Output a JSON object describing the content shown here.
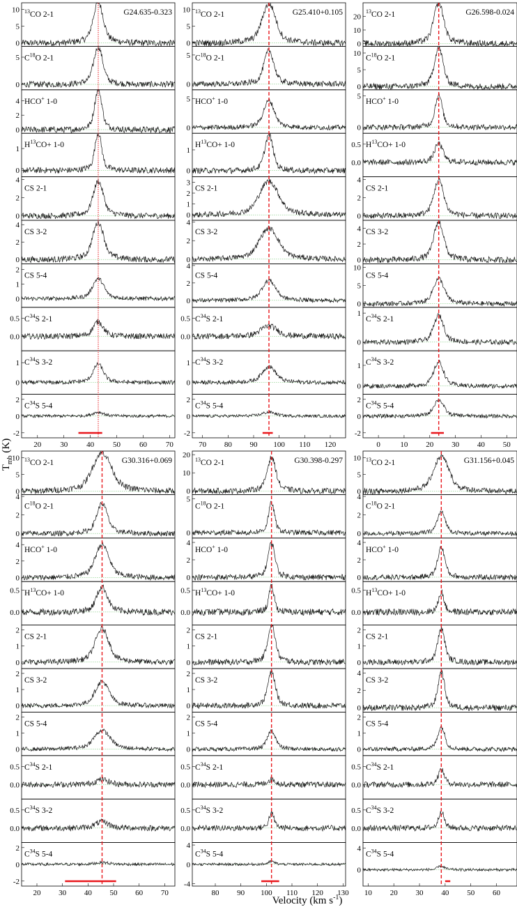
{
  "chart_data": {
    "type": "line",
    "ylabel": "T_mb (K)",
    "ylabel_parts": {
      "main": "T",
      "sub": "mb",
      "rest": " (K)"
    },
    "xlabel": "Velocity (km s-1)",
    "xlabel_parts": {
      "main": "Velocity (km s",
      "sup": "-1",
      "rest": ")"
    },
    "colors": {
      "spectrum": "#111111",
      "baseline": "#5fbf5f",
      "marker": "#e8161b"
    },
    "line_labels": [
      {
        "pre": "",
        "sup": "13",
        "post": "CO 2-1"
      },
      {
        "pre": "C",
        "sup": "18",
        "post": "O 2-1"
      },
      {
        "pre": "HCO",
        "sup": "+",
        "post": " 1-0"
      },
      {
        "pre": "H",
        "sup": "13",
        "post": "CO+ 1-0"
      },
      {
        "pre": "CS 2-1",
        "sup": "",
        "post": ""
      },
      {
        "pre": "CS 3-2",
        "sup": "",
        "post": ""
      },
      {
        "pre": "CS 5-4",
        "sup": "",
        "post": ""
      },
      {
        "pre": "C",
        "sup": "34",
        "post": "S 2-1"
      },
      {
        "pre": "C",
        "sup": "34",
        "post": "S 3-2"
      },
      {
        "pre": "C",
        "sup": "34",
        "post": "S 5-4"
      }
    ],
    "sources": [
      {
        "name": "G24.635-0.323",
        "xlim": [
          14,
          72
        ],
        "xticks": [
          20,
          30,
          40,
          50,
          60,
          70
        ],
        "vlsr": 43,
        "marker_style": "dotted",
        "range_bar": [
          35.5,
          44.5
        ],
        "panels": [
          {
            "yticks": [
              0,
              5,
              10
            ],
            "ylim": [
              -1,
              12
            ],
            "peak": 10.5,
            "width": 1.8
          },
          {
            "yticks": [
              0,
              5
            ],
            "ylim": [
              -1,
              7
            ],
            "peak": 6.0,
            "width": 1.6
          },
          {
            "yticks": [
              0,
              2,
              4
            ],
            "ylim": [
              -0.5,
              5.5
            ],
            "peak": 4.8,
            "width": 1.3
          },
          {
            "yticks": [
              0,
              1
            ],
            "ylim": [
              -0.3,
              1.7
            ],
            "peak": 1.5,
            "width": 1.2
          },
          {
            "yticks": [
              0,
              2,
              4
            ],
            "ylim": [
              -0.5,
              4.3
            ],
            "peak": 3.3,
            "width": 1.8
          },
          {
            "yticks": [
              0,
              2,
              4
            ],
            "ylim": [
              -0.5,
              4.5
            ],
            "peak": 3.7,
            "width": 2.0
          },
          {
            "yticks": [
              0,
              1,
              2
            ],
            "ylim": [
              -0.6,
              2.4
            ],
            "peak": 1.2,
            "width": 2.0
          },
          {
            "yticks": [
              0.0,
              0.5
            ],
            "ylim": [
              -0.4,
              0.8
            ],
            "peak": 0.35,
            "width": 1.8
          },
          {
            "yticks": [
              0,
              1
            ],
            "ylim": [
              -0.6,
              1.6
            ],
            "peak": 0.8,
            "width": 1.8
          },
          {
            "yticks": [
              -2,
              0,
              2
            ],
            "ylim": [
              -2.6,
              2.6
            ],
            "peak": 0.4,
            "width": 2.0
          }
        ]
      },
      {
        "name": "G25.410+0.105",
        "xlim": [
          66,
          126
        ],
        "xticks": [
          70,
          80,
          90,
          100,
          110,
          120
        ],
        "vlsr": 96,
        "marker_style": "dashed",
        "range_bar": [
          93.5,
          97.5
        ],
        "panels": [
          {
            "yticks": [
              0,
              5,
              10
            ],
            "ylim": [
              -1,
              12
            ],
            "peak": 10.2,
            "width": 2.5
          },
          {
            "yticks": [
              0,
              5
            ],
            "ylim": [
              -1,
              6.5
            ],
            "peak": 5.0,
            "width": 1.8
          },
          {
            "yticks": [
              0,
              5
            ],
            "ylim": [
              -1,
              6.5
            ],
            "peak": 4.0,
            "width": 2.0
          },
          {
            "yticks": [
              0,
              1
            ],
            "ylim": [
              -0.3,
              1.8
            ],
            "peak": 1.5,
            "width": 1.5
          },
          {
            "yticks": [
              0,
              1,
              2,
              3
            ],
            "ylim": [
              -0.5,
              3.5
            ],
            "peak": 2.7,
            "width": 3.5
          },
          {
            "yticks": [
              0,
              2,
              4
            ],
            "ylim": [
              -0.5,
              4.2
            ],
            "peak": 2.9,
            "width": 3.5
          },
          {
            "yticks": [
              0,
              2,
              4
            ],
            "ylim": [
              -0.8,
              4.2
            ],
            "peak": 2.0,
            "width": 2.5
          },
          {
            "yticks": [
              0.0,
              0.5
            ],
            "ylim": [
              -0.4,
              0.8
            ],
            "peak": 0.25,
            "width": 3.0
          },
          {
            "yticks": [
              0,
              1
            ],
            "ylim": [
              -0.6,
              1.6
            ],
            "peak": 0.7,
            "width": 2.5
          },
          {
            "yticks": [
              -2,
              0,
              2
            ],
            "ylim": [
              -2.6,
              2.6
            ],
            "peak": 0.4,
            "width": 2.5
          }
        ]
      },
      {
        "name": "G26.598-0.024",
        "xlim": [
          -6,
          54
        ],
        "xticks": [
          0,
          10,
          20,
          30,
          40,
          50
        ],
        "vlsr": 23.5,
        "marker_style": "dashed",
        "range_bar": [
          20.5,
          25.5
        ],
        "panels": [
          {
            "yticks": [
              0,
              10,
              20
            ],
            "ylim": [
              -2,
              30
            ],
            "peak": 26,
            "width": 1.8
          },
          {
            "yticks": [
              0,
              5,
              10
            ],
            "ylim": [
              -1,
              12
            ],
            "peak": 10,
            "width": 1.6
          },
          {
            "yticks": [
              0,
              5
            ],
            "ylim": [
              -1,
              6
            ],
            "peak": 4.5,
            "width": 1.3
          },
          {
            "yticks": [
              0.0,
              0.5
            ],
            "ylim": [
              -0.4,
              0.8
            ],
            "peak": 0.45,
            "width": 1.5
          },
          {
            "yticks": [
              0,
              2,
              4
            ],
            "ylim": [
              -0.5,
              4.3
            ],
            "peak": 3.4,
            "width": 1.8
          },
          {
            "yticks": [
              0,
              2,
              4
            ],
            "ylim": [
              -0.5,
              5
            ],
            "peak": 4.2,
            "width": 1.8
          },
          {
            "yticks": [
              0,
              5,
              10
            ],
            "ylim": [
              -1,
              11
            ],
            "peak": 6.0,
            "width": 2.0
          },
          {
            "yticks": [
              0,
              1
            ],
            "ylim": [
              -0.3,
              1.2
            ],
            "peak": 0.8,
            "width": 1.8
          },
          {
            "yticks": [
              0,
              1
            ],
            "ylim": [
              -0.4,
              1.7
            ],
            "peak": 1.0,
            "width": 1.8
          },
          {
            "yticks": [
              -2,
              0,
              2
            ],
            "ylim": [
              -2.6,
              2.6
            ],
            "peak": 1.7,
            "width": 1.8
          }
        ]
      },
      {
        "name": "G30.316+0.069",
        "xlim": [
          14,
          74
        ],
        "xticks": [
          20,
          30,
          40,
          50,
          60,
          70
        ],
        "vlsr": 45.5,
        "marker_style": "dashed",
        "range_bar": [
          31,
          51
        ],
        "panels": [
          {
            "yticks": [
              0,
              5,
              10
            ],
            "ylim": [
              -1,
              12
            ],
            "peak": 10,
            "width": 3.5
          },
          {
            "yticks": [
              0,
              2,
              4
            ],
            "ylim": [
              -0.5,
              4.2
            ],
            "peak": 2.8,
            "width": 2.0
          },
          {
            "yticks": [
              0,
              2,
              4
            ],
            "ylim": [
              -0.5,
              4.8
            ],
            "peak": 3.5,
            "width": 2.5
          },
          {
            "yticks": [
              0.0,
              0.5
            ],
            "ylim": [
              -0.3,
              0.7
            ],
            "peak": 0.5,
            "width": 2.0
          },
          {
            "yticks": [
              0,
              1,
              2
            ],
            "ylim": [
              -0.4,
              2.3
            ],
            "peak": 1.8,
            "width": 2.5
          },
          {
            "yticks": [
              0,
              1,
              2
            ],
            "ylim": [
              -0.4,
              2.3
            ],
            "peak": 1.3,
            "width": 2.5
          },
          {
            "yticks": [
              0,
              1,
              2
            ],
            "ylim": [
              -0.4,
              2.3
            ],
            "peak": 1.0,
            "width": 3.0
          },
          {
            "yticks": [
              0.0,
              0.5
            ],
            "ylim": [
              -0.4,
              0.8
            ],
            "peak": 0.12,
            "width": 2.5
          },
          {
            "yticks": [
              0.0,
              0.5
            ],
            "ylim": [
              -0.4,
              0.8
            ],
            "peak": 0.15,
            "width": 2.5
          },
          {
            "yticks": [
              -2,
              0,
              2
            ],
            "ylim": [
              -2.6,
              2.6
            ],
            "peak": 0.2,
            "width": 2.5
          }
        ]
      },
      {
        "name": "G30.398-0.297",
        "xlim": [
          71,
          131
        ],
        "xticks": [
          80,
          90,
          100,
          110,
          120,
          130
        ],
        "vlsr": 102,
        "marker_style": "dashed",
        "range_bar": [
          98,
          105
        ],
        "panels": [
          {
            "yticks": [
              0,
              10,
              20
            ],
            "ylim": [
              -2,
              22
            ],
            "peak": 16,
            "width": 1.6
          },
          {
            "yticks": [
              0,
              5
            ],
            "ylim": [
              -0.8,
              5.6
            ],
            "peak": 3.8,
            "width": 1.1
          },
          {
            "yticks": [
              0,
              2,
              4
            ],
            "ylim": [
              -0.5,
              4.5
            ],
            "peak": 3.4,
            "width": 1.3
          },
          {
            "yticks": [
              0.0,
              0.5
            ],
            "ylim": [
              -0.3,
              0.7
            ],
            "peak": 0.5,
            "width": 1.0
          },
          {
            "yticks": [
              0,
              1,
              2
            ],
            "ylim": [
              -0.4,
              2.3
            ],
            "peak": 2.0,
            "width": 1.4
          },
          {
            "yticks": [
              0,
              1,
              2
            ],
            "ylim": [
              -0.4,
              2.3
            ],
            "peak": 1.8,
            "width": 1.4
          },
          {
            "yticks": [
              0,
              1,
              2
            ],
            "ylim": [
              -0.4,
              2.3
            ],
            "peak": 1.0,
            "width": 1.5
          },
          {
            "yticks": [
              0.0,
              0.5
            ],
            "ylim": [
              -0.4,
              0.8
            ],
            "peak": 0.12,
            "width": 1.5
          },
          {
            "yticks": [
              0.0,
              0.5
            ],
            "ylim": [
              -0.4,
              0.8
            ],
            "peak": 0.35,
            "width": 1.0
          },
          {
            "yticks": [
              -4,
              0,
              4
            ],
            "ylim": [
              -4.5,
              4.5
            ],
            "peak": 0.5,
            "width": 1.2
          }
        ]
      },
      {
        "name": "G31.156+0.045",
        "xlim": [
          8,
          68
        ],
        "xticks": [
          10,
          20,
          30,
          40,
          50,
          60
        ],
        "vlsr": 38.5,
        "marker_style": "dashed",
        "range_bar": [
          40,
          42
        ],
        "panels": [
          {
            "yticks": [
              0,
              5,
              10
            ],
            "ylim": [
              -1,
              12
            ],
            "peak": 9,
            "width": 2.8
          },
          {
            "yticks": [
              0,
              2,
              4
            ],
            "ylim": [
              -0.5,
              4.2
            ],
            "peak": 2.0,
            "width": 1.5
          },
          {
            "yticks": [
              0,
              2,
              4
            ],
            "ylim": [
              -0.5,
              4.5
            ],
            "peak": 3.0,
            "width": 1.3
          },
          {
            "yticks": [
              0.0,
              0.5
            ],
            "ylim": [
              -0.3,
              0.7
            ],
            "peak": 0.4,
            "width": 1.0
          },
          {
            "yticks": [
              0,
              1,
              2
            ],
            "ylim": [
              -0.4,
              2.3
            ],
            "peak": 1.8,
            "width": 1.3
          },
          {
            "yticks": [
              0,
              2,
              4
            ],
            "ylim": [
              -0.5,
              4.5
            ],
            "peak": 3.6,
            "width": 1.2
          },
          {
            "yticks": [
              0,
              1,
              2
            ],
            "ylim": [
              -0.4,
              2.3
            ],
            "peak": 1.2,
            "width": 1.3
          },
          {
            "yticks": [
              0.0,
              0.5
            ],
            "ylim": [
              -0.4,
              0.8
            ],
            "peak": 0.35,
            "width": 1.2
          },
          {
            "yticks": [
              0.0,
              0.5
            ],
            "ylim": [
              -0.4,
              0.8
            ],
            "peak": 0.4,
            "width": 1.0
          },
          {
            "yticks": [
              0,
              4
            ],
            "ylim": [
              -3,
              5
            ],
            "peak": 0.6,
            "width": 1.2
          }
        ]
      }
    ]
  }
}
